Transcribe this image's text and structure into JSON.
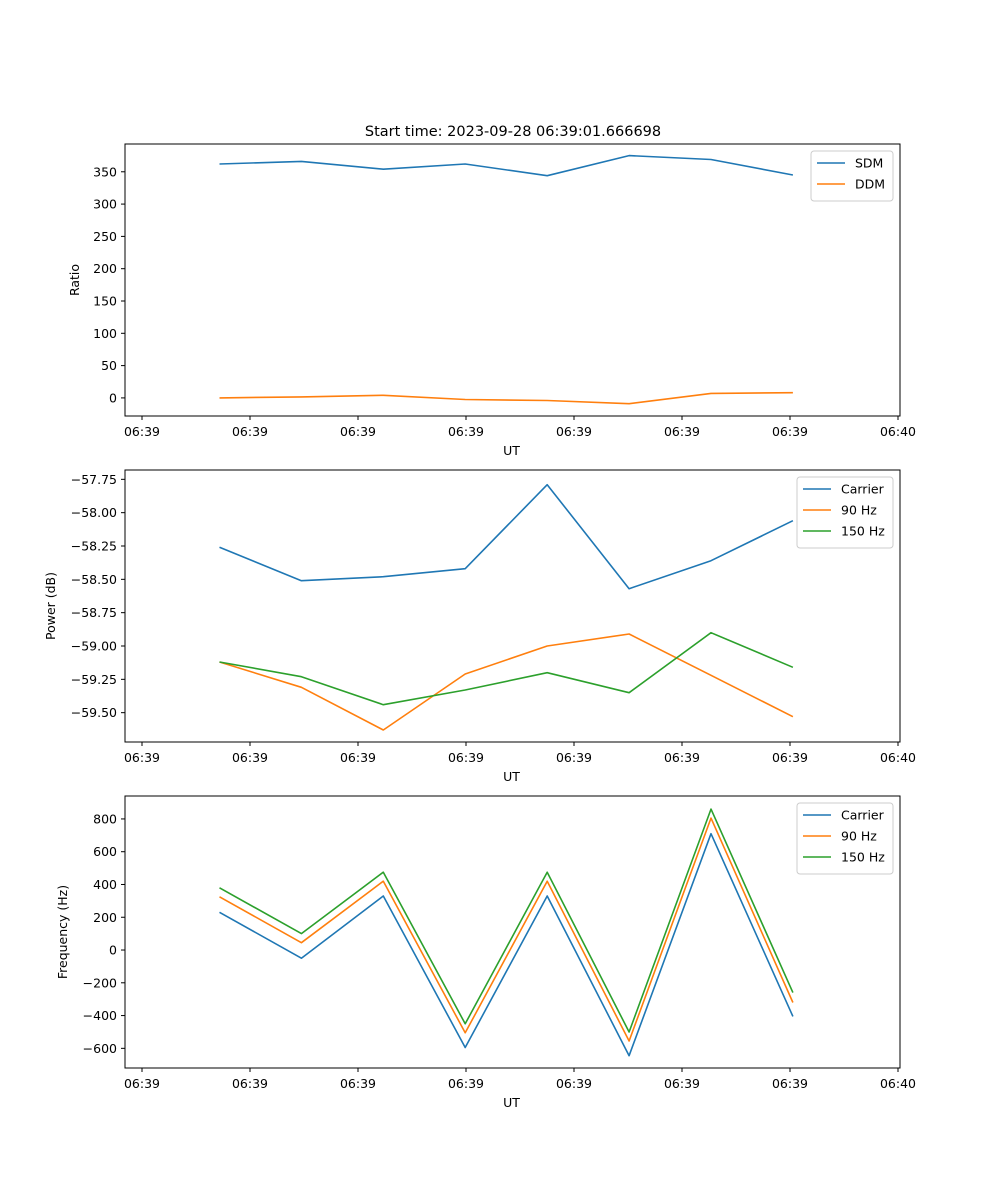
{
  "figure_title": "Start time: 2023-09-28 06:39:01.666698",
  "x_ticks": [
    "06:39",
    "06:39",
    "06:39",
    "06:39",
    "06:39",
    "06:39",
    "06:39",
    "06:40"
  ],
  "colors": {
    "blue": "#1f77b4",
    "orange": "#ff7f0e",
    "green": "#2ca02c"
  },
  "chart_data": [
    {
      "type": "line",
      "title": "Start time: 2023-09-28 06:39:01.666698",
      "xlabel": "UT",
      "ylabel": "Ratio",
      "x": [
        1.5,
        2.15,
        2.8,
        3.45,
        4.1,
        4.75,
        5.4,
        6.05
      ],
      "xlim": [
        0.75,
        6.9
      ],
      "ylim": [
        -28,
        393
      ],
      "yticks": [
        0,
        50,
        100,
        150,
        200,
        250,
        300,
        350
      ],
      "ytick_labels": [
        "0",
        "50",
        "100",
        "150",
        "200",
        "250",
        "300",
        "350"
      ],
      "legend": "top-right",
      "series": [
        {
          "name": "SDM",
          "color": "#1f77b4",
          "values": [
            362,
            366,
            354,
            362,
            344,
            375,
            369,
            345
          ]
        },
        {
          "name": "DDM",
          "color": "#ff7f0e",
          "values": [
            0,
            1.5,
            4,
            -2.5,
            -4,
            -9,
            7,
            8
          ]
        }
      ]
    },
    {
      "type": "line",
      "title": "",
      "xlabel": "UT",
      "ylabel": "Power (dB)",
      "x": [
        1.5,
        2.15,
        2.8,
        3.45,
        4.1,
        4.75,
        5.4,
        6.05
      ],
      "xlim": [
        0.75,
        6.9
      ],
      "ylim": [
        -59.72,
        -57.68
      ],
      "yticks": [
        -57.75,
        -58.0,
        -58.25,
        -58.5,
        -58.75,
        -59.0,
        -59.25,
        -59.5
      ],
      "ytick_labels": [
        "−57.75",
        "−58.00",
        "−58.25",
        "−58.50",
        "−58.75",
        "−59.00",
        "−59.25",
        "−59.50"
      ],
      "legend": "top-right",
      "series": [
        {
          "name": "Carrier",
          "color": "#1f77b4",
          "values": [
            -58.26,
            -58.51,
            -58.48,
            -58.42,
            -57.79,
            -58.57,
            -58.36,
            -58.06
          ]
        },
        {
          "name": "90 Hz",
          "color": "#ff7f0e",
          "values": [
            -59.12,
            -59.31,
            -59.63,
            -59.21,
            -59.0,
            -58.91,
            -59.22,
            -59.53
          ]
        },
        {
          "name": "150 Hz",
          "color": "#2ca02c",
          "values": [
            -59.12,
            -59.23,
            -59.44,
            -59.33,
            -59.2,
            -59.35,
            -58.9,
            -59.16
          ]
        }
      ]
    },
    {
      "type": "line",
      "title": "",
      "xlabel": "UT",
      "ylabel": "Frequency (Hz)",
      "x": [
        1.5,
        2.15,
        2.8,
        3.45,
        4.1,
        4.75,
        5.4,
        6.05
      ],
      "xlim": [
        0.75,
        6.9
      ],
      "ylim": [
        -720,
        940
      ],
      "yticks": [
        -600,
        -400,
        -200,
        0,
        200,
        400,
        600,
        800
      ],
      "ytick_labels": [
        "−600",
        "−400",
        "−200",
        "0",
        "200",
        "400",
        "600",
        "800"
      ],
      "legend": "top-right",
      "series": [
        {
          "name": "Carrier",
          "color": "#1f77b4",
          "values": [
            230,
            -50,
            330,
            -595,
            330,
            -645,
            710,
            -405
          ]
        },
        {
          "name": "90 Hz",
          "color": "#ff7f0e",
          "values": [
            325,
            45,
            420,
            -505,
            420,
            -555,
            805,
            -320
          ]
        },
        {
          "name": "150 Hz",
          "color": "#2ca02c",
          "values": [
            380,
            100,
            475,
            -450,
            475,
            -500,
            860,
            -260
          ]
        }
      ]
    }
  ]
}
